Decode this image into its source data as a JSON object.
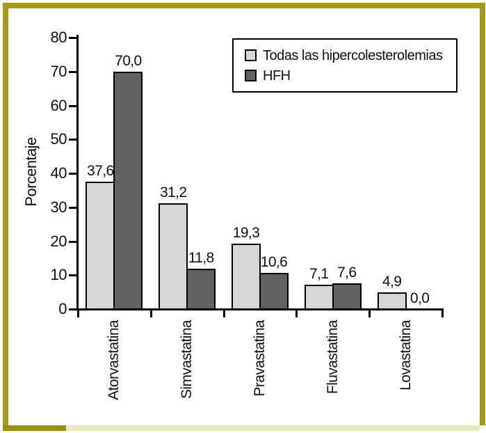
{
  "figure": {
    "frame_color": "#a39a12",
    "frame_bottom_left_color": "#99900f",
    "bottom_band_color": "#e8e9c3",
    "background_color": "#ffffff"
  },
  "chart_data": {
    "type": "bar",
    "title": "",
    "xlabel": "",
    "ylabel": "Porcentaje",
    "categories": [
      "Atorvastatina",
      "Simvastatina",
      "Pravastatina",
      "Fluvastatina",
      "Lovastatina"
    ],
    "series": [
      {
        "name": "Todas las hipercolesterolemias",
        "color": "#d7d7d7",
        "values": [
          37.6,
          31.2,
          19.3,
          7.1,
          4.9
        ],
        "labels": [
          "37,6",
          "31,2",
          "19,3",
          "7,1",
          "4,9"
        ]
      },
      {
        "name": "HFH",
        "color": "#626262",
        "values": [
          70.0,
          11.8,
          10.6,
          7.6,
          0.0
        ],
        "labels": [
          "70,0",
          "11,8",
          "10,6",
          "7,6",
          "0,0"
        ]
      }
    ],
    "ylim": [
      0,
      80
    ],
    "yticks": [
      0,
      10,
      20,
      30,
      40,
      50,
      60,
      70,
      80
    ],
    "grid": false,
    "legend_position": "top-right",
    "decimal_separator": ","
  }
}
